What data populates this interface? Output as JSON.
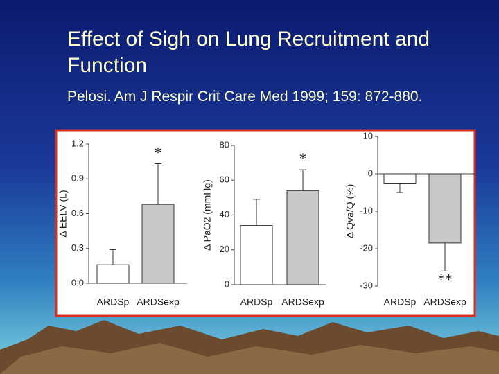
{
  "slide": {
    "title": "Effect of Sigh on Lung Recruitment and Function",
    "subtitle": "Pelosi. Am J Respir Crit Care Med 1999; 159: 872-880."
  },
  "chart_data": [
    {
      "type": "bar",
      "ylabel": "Δ EELV (L)",
      "categories": [
        "ARDSp",
        "ARDSexp"
      ],
      "values": [
        0.16,
        0.68
      ],
      "errors": [
        0.13,
        0.35
      ],
      "colors": [
        "#ffffff",
        "#c8c8c8"
      ],
      "annotation": "*",
      "ylim": [
        0,
        1.2
      ],
      "yticks": [
        {
          "value": 0,
          "label": "0.0"
        },
        0.3,
        0.6,
        0.9,
        1.2
      ]
    },
    {
      "type": "bar",
      "ylabel": "Δ PaO2 (mmHg)",
      "categories": [
        "ARDSp",
        "ARDSexp"
      ],
      "values": [
        34,
        54
      ],
      "errors": [
        15,
        12
      ],
      "colors": [
        "#ffffff",
        "#c8c8c8"
      ],
      "annotation": "*",
      "ylim": [
        0,
        80
      ],
      "yticks": [
        0,
        20,
        40,
        60,
        80
      ]
    },
    {
      "type": "bar",
      "ylabel": "Δ Qva/Q (%)",
      "categories": [
        "ARDSp",
        "ARDSexp"
      ],
      "values": [
        -2.5,
        -18.5
      ],
      "errors": [
        2.5,
        7.5
      ],
      "colors": [
        "#ffffff",
        "#c8c8c8"
      ],
      "annotation": "**",
      "ylim": [
        -30,
        10
      ],
      "yticks": [
        -30,
        -20,
        -10,
        0,
        10
      ]
    }
  ]
}
